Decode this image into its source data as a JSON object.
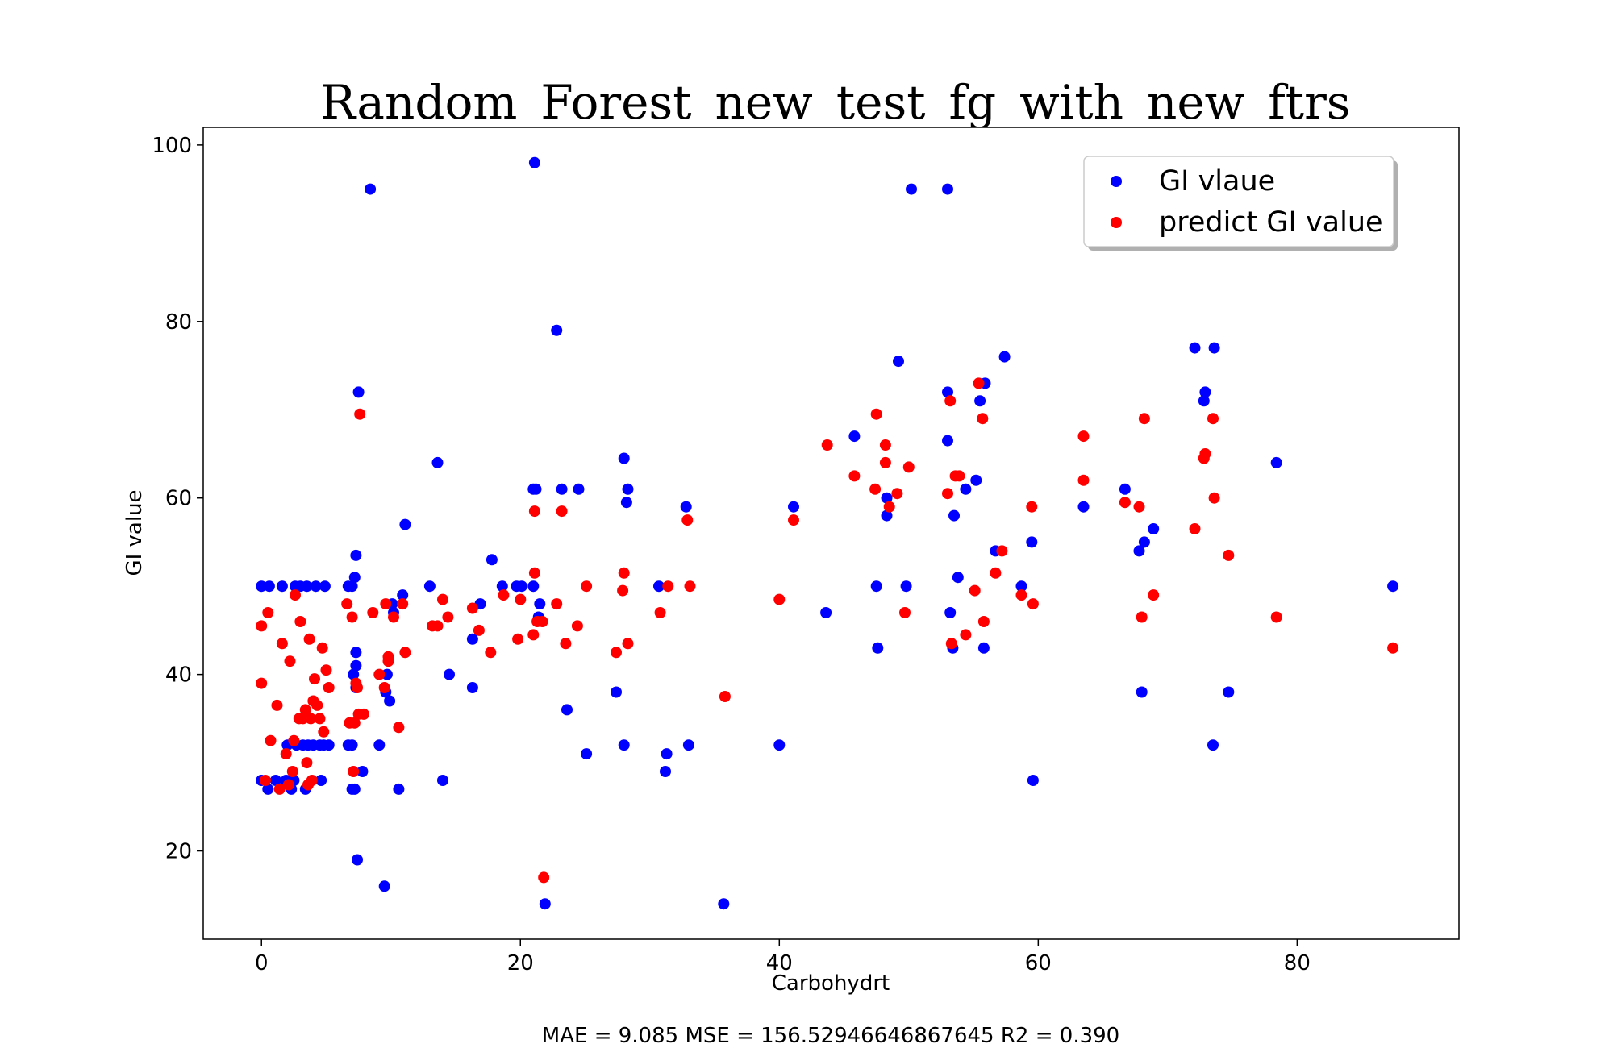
{
  "chart_data": {
    "type": "scatter",
    "title": "Random_Forest_new_test_fg_with_new_ftrs",
    "xlabel": "Carbohydrt",
    "ylabel": "GI value",
    "xlim": [
      -4.5,
      92.5
    ],
    "ylim": [
      10,
      102
    ],
    "xticks": [
      0,
      20,
      40,
      60,
      80
    ],
    "yticks": [
      20,
      40,
      60,
      80,
      100
    ],
    "grid": false,
    "legend_position": "top-right",
    "footer": "MAE = 9.085 MSE = 156.52946646867645 R2 = 0.390",
    "series": [
      {
        "name": "GI vlaue",
        "color": "#0000ff",
        "points": [
          [
            0,
            28
          ],
          [
            0,
            50
          ],
          [
            0.5,
            27
          ],
          [
            0.6,
            50
          ],
          [
            1.1,
            28
          ],
          [
            1.6,
            50
          ],
          [
            1.9,
            28
          ],
          [
            2,
            32
          ],
          [
            2.3,
            27
          ],
          [
            2.5,
            28
          ],
          [
            2.6,
            50
          ],
          [
            2.7,
            32
          ],
          [
            3,
            50
          ],
          [
            3.2,
            32
          ],
          [
            3.4,
            27
          ],
          [
            3.5,
            50
          ],
          [
            3.6,
            32
          ],
          [
            4,
            32
          ],
          [
            4.2,
            50
          ],
          [
            4.5,
            32
          ],
          [
            4.6,
            28
          ],
          [
            4.8,
            32
          ],
          [
            4.9,
            50
          ],
          [
            5.2,
            32
          ],
          [
            6.7,
            32
          ],
          [
            6.7,
            50
          ],
          [
            7,
            27
          ],
          [
            7,
            32
          ],
          [
            7,
            50
          ],
          [
            7.1,
            40
          ],
          [
            7.2,
            51
          ],
          [
            7.2,
            27
          ],
          [
            7.3,
            42.5
          ],
          [
            7.3,
            38.5
          ],
          [
            7.3,
            41
          ],
          [
            7.3,
            53.5
          ],
          [
            7.4,
            19
          ],
          [
            7.5,
            72
          ],
          [
            7.8,
            29
          ],
          [
            8.4,
            95
          ],
          [
            9.1,
            32
          ],
          [
            9.5,
            16
          ],
          [
            9.6,
            38
          ],
          [
            9.7,
            40
          ],
          [
            9.9,
            37
          ],
          [
            10.1,
            48
          ],
          [
            10.2,
            47
          ],
          [
            10.6,
            27
          ],
          [
            10.9,
            49
          ],
          [
            11.1,
            57
          ],
          [
            13,
            50
          ],
          [
            13.6,
            64
          ],
          [
            14,
            28
          ],
          [
            14.5,
            40
          ],
          [
            16.3,
            38.5
          ],
          [
            16.3,
            44
          ],
          [
            16.9,
            48
          ],
          [
            17.8,
            53
          ],
          [
            18.6,
            50
          ],
          [
            19.7,
            50
          ],
          [
            20.1,
            50
          ],
          [
            21,
            61
          ],
          [
            21,
            50
          ],
          [
            21.1,
            98
          ],
          [
            21.2,
            61
          ],
          [
            21.4,
            46.5
          ],
          [
            21.5,
            48
          ],
          [
            21.9,
            14
          ],
          [
            22.8,
            79
          ],
          [
            23.2,
            61
          ],
          [
            23.6,
            36
          ],
          [
            24.5,
            61
          ],
          [
            25.1,
            31
          ],
          [
            27.4,
            38
          ],
          [
            28,
            32
          ],
          [
            28,
            64.5
          ],
          [
            28.2,
            59.5
          ],
          [
            28.3,
            61
          ],
          [
            30.7,
            50
          ],
          [
            31.2,
            29
          ],
          [
            31.3,
            31
          ],
          [
            32.8,
            59
          ],
          [
            33,
            32
          ],
          [
            35.7,
            14
          ],
          [
            40,
            32
          ],
          [
            41.1,
            59
          ],
          [
            43.6,
            47
          ],
          [
            45.8,
            67
          ],
          [
            47.5,
            50
          ],
          [
            47.6,
            43
          ],
          [
            48.3,
            60
          ],
          [
            48.3,
            58
          ],
          [
            49.2,
            75.5
          ],
          [
            49.8,
            50
          ],
          [
            50.2,
            95
          ],
          [
            53,
            95
          ],
          [
            53,
            72
          ],
          [
            53,
            66.5
          ],
          [
            53.2,
            47
          ],
          [
            53.4,
            43
          ],
          [
            53.5,
            58
          ],
          [
            53.8,
            51
          ],
          [
            54.4,
            61
          ],
          [
            55.2,
            62
          ],
          [
            55.5,
            71
          ],
          [
            55.8,
            43
          ],
          [
            55.9,
            73
          ],
          [
            56.7,
            54
          ],
          [
            57.4,
            76
          ],
          [
            58.7,
            50
          ],
          [
            59.5,
            55
          ],
          [
            59.6,
            28
          ],
          [
            63.5,
            59
          ],
          [
            66.7,
            61
          ],
          [
            67.8,
            54
          ],
          [
            68,
            38
          ],
          [
            68.2,
            55
          ],
          [
            68.9,
            56.5
          ],
          [
            72.1,
            77
          ],
          [
            72.8,
            71
          ],
          [
            72.9,
            72
          ],
          [
            73.5,
            32
          ],
          [
            73.6,
            77
          ],
          [
            74.7,
            38
          ],
          [
            78.4,
            64
          ],
          [
            87.4,
            50
          ]
        ]
      },
      {
        "name": "predict GI value",
        "color": "#ff0000",
        "points": [
          [
            0,
            45.5
          ],
          [
            0,
            39
          ],
          [
            0.3,
            28
          ],
          [
            0.5,
            47
          ],
          [
            0.7,
            32.5
          ],
          [
            1.2,
            36.5
          ],
          [
            1.4,
            27
          ],
          [
            1.6,
            43.5
          ],
          [
            1.9,
            31
          ],
          [
            2.1,
            27.5
          ],
          [
            2.2,
            41.5
          ],
          [
            2.4,
            29
          ],
          [
            2.5,
            32.5
          ],
          [
            2.6,
            49
          ],
          [
            2.9,
            35
          ],
          [
            3,
            46
          ],
          [
            3.2,
            35
          ],
          [
            3.4,
            36
          ],
          [
            3.5,
            30
          ],
          [
            3.6,
            27.5
          ],
          [
            3.7,
            44
          ],
          [
            3.8,
            35
          ],
          [
            3.9,
            28
          ],
          [
            4,
            37
          ],
          [
            4.1,
            39.5
          ],
          [
            4.3,
            36.5
          ],
          [
            4.5,
            35
          ],
          [
            4.7,
            43
          ],
          [
            4.8,
            33.5
          ],
          [
            5,
            40.5
          ],
          [
            5.2,
            38.5
          ],
          [
            6.6,
            48
          ],
          [
            6.8,
            34.5
          ],
          [
            7,
            46.5
          ],
          [
            7.1,
            29
          ],
          [
            7.2,
            34.5
          ],
          [
            7.3,
            39
          ],
          [
            7.4,
            38.5
          ],
          [
            7.5,
            35.5
          ],
          [
            7.6,
            69.5
          ],
          [
            7.9,
            35.5
          ],
          [
            8.6,
            47
          ],
          [
            9.1,
            40
          ],
          [
            9.5,
            38.5
          ],
          [
            9.6,
            48
          ],
          [
            9.8,
            41.5
          ],
          [
            9.8,
            42
          ],
          [
            10.2,
            46.5
          ],
          [
            10.6,
            34
          ],
          [
            10.9,
            48
          ],
          [
            11.1,
            42.5
          ],
          [
            13.2,
            45.5
          ],
          [
            13.6,
            45.5
          ],
          [
            14,
            48.5
          ],
          [
            14.4,
            46.5
          ],
          [
            16.3,
            47.5
          ],
          [
            16.8,
            45
          ],
          [
            17.7,
            42.5
          ],
          [
            18.7,
            49
          ],
          [
            19.8,
            44
          ],
          [
            20,
            48.5
          ],
          [
            21,
            44.5
          ],
          [
            21.1,
            58.5
          ],
          [
            21.1,
            51.5
          ],
          [
            21.3,
            46
          ],
          [
            21.7,
            46
          ],
          [
            21.8,
            17
          ],
          [
            22.8,
            48
          ],
          [
            23.2,
            58.5
          ],
          [
            23.5,
            43.5
          ],
          [
            24.4,
            45.5
          ],
          [
            25.1,
            50
          ],
          [
            27.4,
            42.5
          ],
          [
            27.9,
            49.5
          ],
          [
            28,
            51.5
          ],
          [
            28.3,
            43.5
          ],
          [
            30.8,
            47
          ],
          [
            31.4,
            50
          ],
          [
            32.9,
            57.5
          ],
          [
            33.1,
            50
          ],
          [
            35.8,
            37.5
          ],
          [
            40,
            48.5
          ],
          [
            41.1,
            57.5
          ],
          [
            43.7,
            66
          ],
          [
            45.8,
            62.5
          ],
          [
            47.4,
            61
          ],
          [
            47.5,
            69.5
          ],
          [
            48.2,
            66
          ],
          [
            48.2,
            64
          ],
          [
            48.5,
            59
          ],
          [
            49.1,
            60.5
          ],
          [
            49.7,
            47
          ],
          [
            50,
            63.5
          ],
          [
            53,
            60.5
          ],
          [
            53.2,
            71
          ],
          [
            53.3,
            43.5
          ],
          [
            53.6,
            62.5
          ],
          [
            53.9,
            62.5
          ],
          [
            54.4,
            44.5
          ],
          [
            55.1,
            49.5
          ],
          [
            55.4,
            73
          ],
          [
            55.7,
            69
          ],
          [
            55.8,
            46
          ],
          [
            56.7,
            51.5
          ],
          [
            57.2,
            54
          ],
          [
            58.7,
            49
          ],
          [
            59.5,
            59
          ],
          [
            59.6,
            48
          ],
          [
            63.5,
            62
          ],
          [
            63.5,
            67
          ],
          [
            66.7,
            59.5
          ],
          [
            67.8,
            59
          ],
          [
            68,
            46.5
          ],
          [
            68.2,
            69
          ],
          [
            68.9,
            49
          ],
          [
            72.1,
            56.5
          ],
          [
            72.8,
            64.5
          ],
          [
            72.9,
            65
          ],
          [
            73.5,
            69
          ],
          [
            73.6,
            60
          ],
          [
            74.7,
            53.5
          ],
          [
            78.4,
            46.5
          ],
          [
            87.4,
            43
          ]
        ]
      }
    ]
  }
}
